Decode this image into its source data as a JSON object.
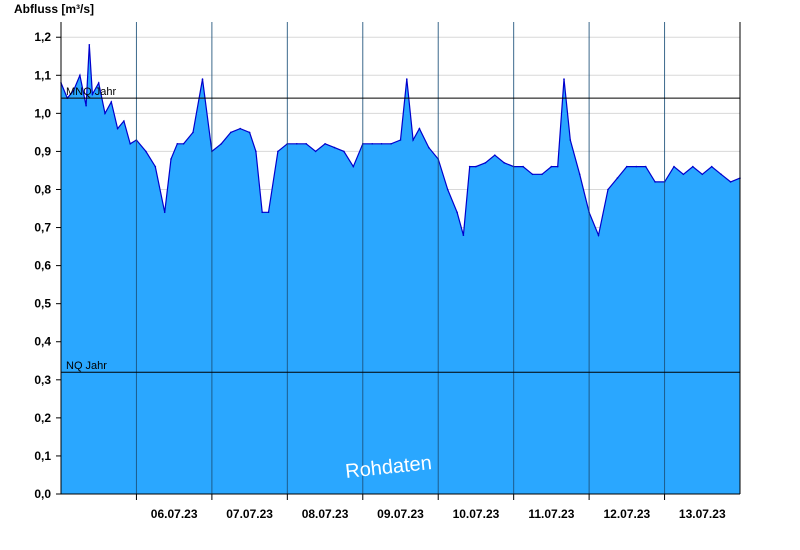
{
  "chart_data": {
    "type": "area",
    "ylabel": "Abfluss [m³/s]",
    "ylim": [
      0,
      1.24
    ],
    "yticks": [
      "0,0",
      "0,1",
      "0,2",
      "0,3",
      "0,4",
      "0,5",
      "0,6",
      "0,7",
      "0,8",
      "0,9",
      "1,0",
      "1,1",
      "1,2"
    ],
    "xlim": [
      "2023-07-05T00:00",
      "2023-07-14T00:00"
    ],
    "xticks": [
      "06.07.23",
      "07.07.23",
      "08.07.23",
      "09.07.23",
      "10.07.23",
      "11.07.23",
      "12.07.23",
      "13.07.23"
    ],
    "grid": true,
    "reference_lines": [
      {
        "label": "MNQ Jahr",
        "value": 1.04
      },
      {
        "label": "NQ Jahr",
        "value": 0.32
      }
    ],
    "watermark": "Rohdaten",
    "fill_color": "#2aa7ff",
    "line_color": "#0000cc",
    "series": [
      {
        "x": [
          "2023-07-05T00:00",
          "2023-07-05T02:00",
          "2023-07-05T04:00",
          "2023-07-05T06:00",
          "2023-07-05T08:00",
          "2023-07-05T09:00",
          "2023-07-05T10:00",
          "2023-07-05T12:00",
          "2023-07-05T14:00",
          "2023-07-05T16:00",
          "2023-07-05T18:00",
          "2023-07-05T20:00",
          "2023-07-05T22:00",
          "2023-07-06T00:00",
          "2023-07-06T03:00",
          "2023-07-06T06:00",
          "2023-07-06T09:00",
          "2023-07-06T11:00",
          "2023-07-06T13:00",
          "2023-07-06T15:00",
          "2023-07-06T18:00",
          "2023-07-06T21:00",
          "2023-07-07T00:00",
          "2023-07-07T03:00",
          "2023-07-07T06:00",
          "2023-07-07T09:00",
          "2023-07-07T12:00",
          "2023-07-07T14:00",
          "2023-07-07T16:00",
          "2023-07-07T18:00",
          "2023-07-07T21:00",
          "2023-07-08T00:00",
          "2023-07-08T03:00",
          "2023-07-08T06:00",
          "2023-07-08T09:00",
          "2023-07-08T12:00",
          "2023-07-08T15:00",
          "2023-07-08T18:00",
          "2023-07-08T21:00",
          "2023-07-09T00:00",
          "2023-07-09T03:00",
          "2023-07-09T06:00",
          "2023-07-09T09:00",
          "2023-07-09T12:00",
          "2023-07-09T14:00",
          "2023-07-09T16:00",
          "2023-07-09T18:00",
          "2023-07-09T21:00",
          "2023-07-10T00:00",
          "2023-07-10T03:00",
          "2023-07-10T06:00",
          "2023-07-10T08:00",
          "2023-07-10T10:00",
          "2023-07-10T12:00",
          "2023-07-10T15:00",
          "2023-07-10T18:00",
          "2023-07-10T21:00",
          "2023-07-11T00:00",
          "2023-07-11T03:00",
          "2023-07-11T06:00",
          "2023-07-11T09:00",
          "2023-07-11T12:00",
          "2023-07-11T14:00",
          "2023-07-11T16:00",
          "2023-07-11T18:00",
          "2023-07-11T21:00",
          "2023-07-12T00:00",
          "2023-07-12T03:00",
          "2023-07-12T06:00",
          "2023-07-12T09:00",
          "2023-07-12T12:00",
          "2023-07-12T15:00",
          "2023-07-12T18:00",
          "2023-07-12T21:00",
          "2023-07-13T00:00",
          "2023-07-13T03:00",
          "2023-07-13T06:00",
          "2023-07-13T09:00",
          "2023-07-13T12:00",
          "2023-07-13T15:00",
          "2023-07-13T18:00",
          "2023-07-13T21:00",
          "2023-07-14T00:00"
        ],
        "y": [
          1.08,
          1.04,
          1.06,
          1.1,
          1.02,
          1.18,
          1.05,
          1.08,
          1.0,
          1.03,
          0.96,
          0.98,
          0.92,
          0.93,
          0.9,
          0.86,
          0.74,
          0.88,
          0.92,
          0.92,
          0.95,
          1.09,
          0.9,
          0.92,
          0.95,
          0.96,
          0.95,
          0.9,
          0.74,
          0.74,
          0.9,
          0.92,
          0.92,
          0.92,
          0.9,
          0.92,
          0.91,
          0.9,
          0.86,
          0.92,
          0.92,
          0.92,
          0.92,
          0.93,
          1.09,
          0.93,
          0.96,
          0.91,
          0.88,
          0.8,
          0.74,
          0.68,
          0.86,
          0.86,
          0.87,
          0.89,
          0.87,
          0.86,
          0.86,
          0.84,
          0.84,
          0.86,
          0.86,
          1.09,
          0.93,
          0.84,
          0.74,
          0.68,
          0.8,
          0.83,
          0.86,
          0.86,
          0.86,
          0.82,
          0.82,
          0.86,
          0.84,
          0.86,
          0.84,
          0.86,
          0.84,
          0.82,
          0.83
        ]
      }
    ]
  }
}
